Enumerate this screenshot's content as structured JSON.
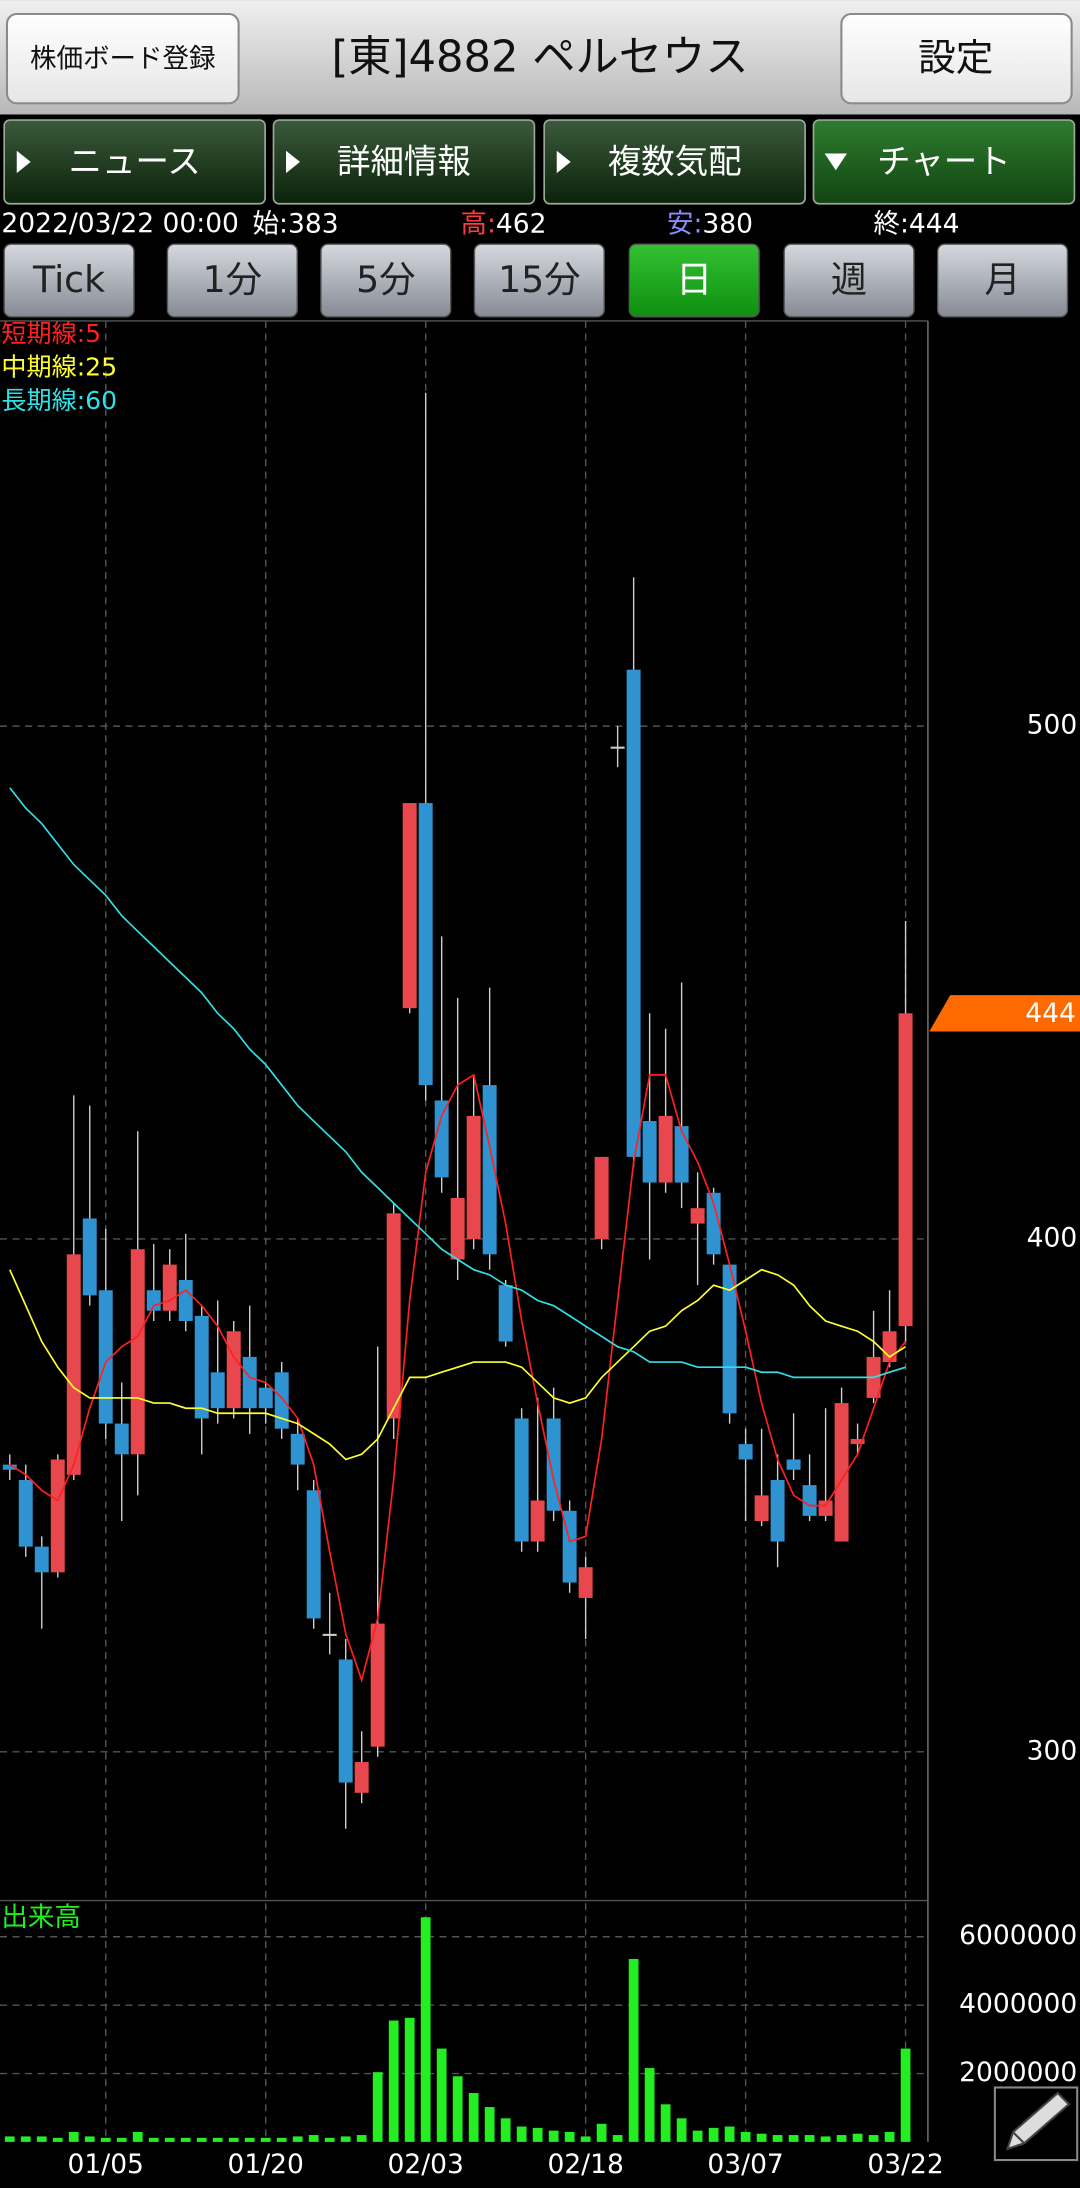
{
  "header": {
    "left_button": "株価ボード登録",
    "title": "[東]4882 ペルセウス",
    "right_button": "設定"
  },
  "tabs": [
    {
      "label": "ニュース",
      "active": false
    },
    {
      "label": "詳細情報",
      "active": false
    },
    {
      "label": "複数気配",
      "active": false
    },
    {
      "label": "チャート",
      "active": true
    }
  ],
  "info": {
    "datetime": "2022/03/22 00:00",
    "items": [
      {
        "label": "始:",
        "value": 383,
        "color": "#ffffff"
      },
      {
        "label": "高:",
        "value": 462,
        "color": "#ff3b3b"
      },
      {
        "label": "安:",
        "value": 380,
        "color": "#8c8cff"
      },
      {
        "label": "終:",
        "value": 444,
        "color": "#ffffff"
      }
    ]
  },
  "periods": [
    {
      "label": "Tick",
      "active": false
    },
    {
      "label": "1分",
      "active": false
    },
    {
      "label": "5分",
      "active": false
    },
    {
      "label": "15分",
      "active": false
    },
    {
      "label": "日",
      "active": true
    },
    {
      "label": "週",
      "active": false
    },
    {
      "label": "月",
      "active": false
    }
  ],
  "chart_data": [
    {
      "type": "candlestick",
      "open": [
        356,
        353,
        340,
        335,
        354,
        404,
        390,
        364,
        358,
        390,
        386,
        392,
        385,
        374,
        367,
        377,
        371,
        374,
        362,
        351,
        323,
        318,
        292,
        301,
        365,
        445,
        485,
        427,
        396,
        400,
        430,
        391,
        365,
        341,
        365,
        347,
        330,
        400,
        496,
        511,
        423,
        411,
        422,
        403,
        409,
        395,
        360,
        345,
        353,
        357,
        352,
        346,
        341,
        360,
        369,
        376,
        383
      ],
      "high": [
        358,
        356,
        342,
        358,
        428,
        426,
        402,
        372,
        421,
        399,
        398,
        401,
        387,
        388,
        384,
        387,
        372,
        376,
        365,
        353,
        331,
        322,
        304,
        379,
        407,
        485,
        565,
        459,
        447,
        432,
        449,
        392,
        367,
        369,
        371,
        349,
        338,
        416,
        500,
        529,
        444,
        441,
        450,
        413,
        410,
        395,
        363,
        363,
        358,
        366,
        358,
        367,
        371,
        364,
        386,
        390,
        462
      ],
      "low": [
        353,
        338,
        324,
        334,
        353,
        387,
        361,
        345,
        350,
        384,
        384,
        382,
        358,
        364,
        365,
        362,
        364,
        361,
        351,
        324,
        319,
        285,
        290,
        299,
        361,
        444,
        427,
        409,
        392,
        398,
        394,
        379,
        339,
        339,
        345,
        331,
        322,
        398,
        492,
        414,
        396,
        409,
        406,
        391,
        395,
        364,
        345,
        344,
        336,
        353,
        345,
        345,
        341,
        358,
        368,
        375,
        380
      ],
      "close": [
        355,
        340,
        335,
        357,
        397,
        389,
        364,
        358,
        398,
        386,
        395,
        384,
        365,
        367,
        382,
        367,
        367,
        363,
        356,
        326,
        323,
        294,
        298,
        325,
        405,
        485,
        430,
        412,
        408,
        424,
        397,
        380,
        341,
        349,
        347,
        333,
        336,
        416,
        496,
        416,
        411,
        424,
        411,
        406,
        397,
        366,
        357,
        350,
        341,
        355,
        346,
        349,
        368,
        361,
        377,
        382,
        444
      ],
      "up_color": "#e8474d",
      "down_color": "#2e93d0",
      "doji_color": "#cccccc",
      "last_price_color": "#ff6a00",
      "ylim": [
        271,
        579
      ],
      "yticks": [
        300,
        400,
        500
      ],
      "grid": true,
      "series": [
        {
          "name": "短期線:5",
          "color": "#ff2020",
          "values": [
            356,
            354,
            351,
            349,
            356,
            367,
            376,
            379,
            381,
            387,
            388,
            390,
            387,
            383,
            377,
            373,
            372,
            369,
            365,
            356,
            339,
            323,
            314,
            326,
            353,
            388,
            413,
            424,
            430,
            432,
            418,
            403,
            384,
            368,
            353,
            341,
            342,
            361,
            388,
            415,
            432,
            432,
            421,
            415,
            407,
            395,
            382,
            368,
            357,
            350,
            348,
            348,
            353,
            358,
            367,
            376,
            380
          ]
        },
        {
          "name": "中期線:25",
          "color": "#ffff30",
          "values": [
            394,
            387,
            380,
            375,
            371,
            369,
            369,
            369,
            369,
            368,
            368,
            367,
            367,
            366,
            366,
            366,
            366,
            365,
            364,
            362,
            360,
            357,
            358,
            361,
            367,
            373,
            373,
            374,
            375,
            376,
            376,
            376,
            375,
            372,
            369,
            368,
            369,
            373,
            376,
            379,
            382,
            383,
            386,
            388,
            391,
            390,
            392,
            394,
            393,
            391,
            387,
            384,
            383,
            382,
            380,
            377,
            379
          ]
        },
        {
          "name": "長期線:60",
          "color": "#30e0e8",
          "values": [
            488,
            484,
            481,
            477,
            473,
            470,
            467,
            463,
            460,
            457,
            454,
            451,
            448,
            444,
            441,
            437,
            434,
            430,
            426,
            423,
            420,
            417,
            413,
            410,
            407,
            404,
            401,
            398,
            396,
            394,
            393,
            391,
            390,
            388,
            387,
            385,
            383,
            381,
            379,
            378,
            376,
            376,
            376,
            375,
            375,
            375,
            375,
            374,
            374,
            373,
            373,
            373,
            373,
            373,
            373,
            374,
            375
          ]
        }
      ]
    },
    {
      "type": "bar",
      "title": "出来高",
      "color": "#22ee22",
      "categories": [
        null,
        null,
        null,
        null,
        null,
        null,
        "01/05",
        null,
        null,
        null,
        null,
        null,
        null,
        null,
        null,
        null,
        "01/20",
        null,
        null,
        null,
        null,
        null,
        null,
        null,
        null,
        null,
        "02/03",
        null,
        null,
        null,
        null,
        null,
        null,
        null,
        null,
        null,
        "02/18",
        null,
        null,
        null,
        null,
        null,
        null,
        null,
        null,
        null,
        "03/07",
        null,
        null,
        null,
        null,
        null,
        null,
        null,
        null,
        null,
        "03/22"
      ],
      "values": [
        160000,
        160000,
        160000,
        120000,
        290000,
        160000,
        120000,
        120000,
        290000,
        120000,
        120000,
        120000,
        120000,
        120000,
        120000,
        120000,
        120000,
        120000,
        160000,
        200000,
        120000,
        160000,
        200000,
        2040000,
        3550000,
        3630000,
        6570000,
        2730000,
        1920000,
        1430000,
        1020000,
        690000,
        450000,
        410000,
        330000,
        290000,
        160000,
        530000,
        200000,
        5350000,
        2160000,
        1100000,
        690000,
        330000,
        410000,
        450000,
        290000,
        240000,
        200000,
        200000,
        200000,
        160000,
        200000,
        240000,
        200000,
        290000,
        2730000
      ],
      "ylim": [
        0,
        7060000
      ],
      "yticks": [
        2000000,
        4000000,
        6000000
      ],
      "grid": true
    }
  ]
}
